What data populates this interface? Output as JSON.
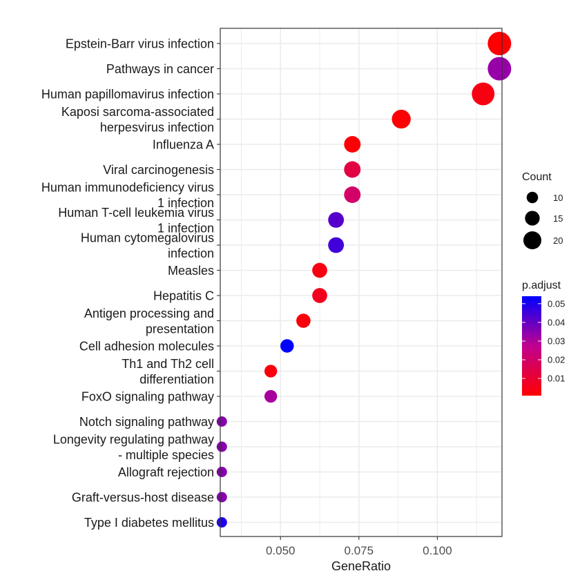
{
  "chart_data": {
    "type": "scatter",
    "title": "",
    "xlabel": "GeneRatio",
    "ylabel": "",
    "xlim": [
      0.0308,
      0.1206
    ],
    "xticks": [
      0.05,
      0.075,
      0.1
    ],
    "xtick_labels": [
      "0.050",
      "0.075",
      "0.100"
    ],
    "grid": true,
    "legend_position": "right",
    "points": [
      {
        "term": "Epstein-Barr virus infection",
        "gene_ratio": 0.1198,
        "count": 23,
        "p_adjust": 0.0008
      },
      {
        "term": "Pathways in cancer",
        "gene_ratio": 0.1198,
        "count": 23,
        "p_adjust": 0.033
      },
      {
        "term": "Human papillomavirus infection",
        "gene_ratio": 0.1146,
        "count": 22,
        "p_adjust": 0.004
      },
      {
        "term": "Kaposi sarcoma-associated\nherpesvirus infection",
        "gene_ratio": 0.0885,
        "count": 17,
        "p_adjust": 0.002
      },
      {
        "term": "Influenza A",
        "gene_ratio": 0.0729,
        "count": 14,
        "p_adjust": 0.002
      },
      {
        "term": "Viral carcinogenesis",
        "gene_ratio": 0.0729,
        "count": 14,
        "p_adjust": 0.013
      },
      {
        "term": "Human immunodeficiency virus\n1 infection",
        "gene_ratio": 0.0729,
        "count": 14,
        "p_adjust": 0.02
      },
      {
        "term": "Human T-cell leukemia virus\n1 infection",
        "gene_ratio": 0.0677,
        "count": 13,
        "p_adjust": 0.042
      },
      {
        "term": "Human cytomegalovirus\ninfection",
        "gene_ratio": 0.0677,
        "count": 13,
        "p_adjust": 0.045
      },
      {
        "term": "Measles",
        "gene_ratio": 0.0625,
        "count": 12,
        "p_adjust": 0.004
      },
      {
        "term": "Hepatitis C",
        "gene_ratio": 0.0625,
        "count": 12,
        "p_adjust": 0.006
      },
      {
        "term": "Antigen processing and\npresentation",
        "gene_ratio": 0.0573,
        "count": 11,
        "p_adjust": 0.003
      },
      {
        "term": "Cell adhesion molecules",
        "gene_ratio": 0.0521,
        "count": 10,
        "p_adjust": 0.054
      },
      {
        "term": "Th1 and Th2 cell\ndifferentiation",
        "gene_ratio": 0.0469,
        "count": 9,
        "p_adjust": 0.003
      },
      {
        "term": "FoxO signaling pathway",
        "gene_ratio": 0.0469,
        "count": 9,
        "p_adjust": 0.031
      },
      {
        "term": "Notch signaling pathway",
        "gene_ratio": 0.0313,
        "count": 6,
        "p_adjust": 0.035
      },
      {
        "term": "Longevity regulating pathway\n- multiple species",
        "gene_ratio": 0.0313,
        "count": 6,
        "p_adjust": 0.035
      },
      {
        "term": "Allograft rejection",
        "gene_ratio": 0.0313,
        "count": 6,
        "p_adjust": 0.035
      },
      {
        "term": "Graft-versus-host disease",
        "gene_ratio": 0.0313,
        "count": 6,
        "p_adjust": 0.035
      },
      {
        "term": "Type I diabetes mellitus",
        "gene_ratio": 0.0313,
        "count": 6,
        "p_adjust": 0.05
      }
    ],
    "size_legend": {
      "title": "Count",
      "breaks": [
        10,
        15,
        20
      ]
    },
    "color_legend": {
      "title": "p.adjust",
      "low_color": "#ff0000",
      "high_color": "#0000ff",
      "range": [
        0.0008,
        0.054
      ],
      "breaks": [
        0.01,
        0.02,
        0.03,
        0.04,
        0.05
      ],
      "break_labels": [
        "0.01",
        "0.02",
        "0.03",
        "0.04",
        "0.05"
      ]
    }
  }
}
